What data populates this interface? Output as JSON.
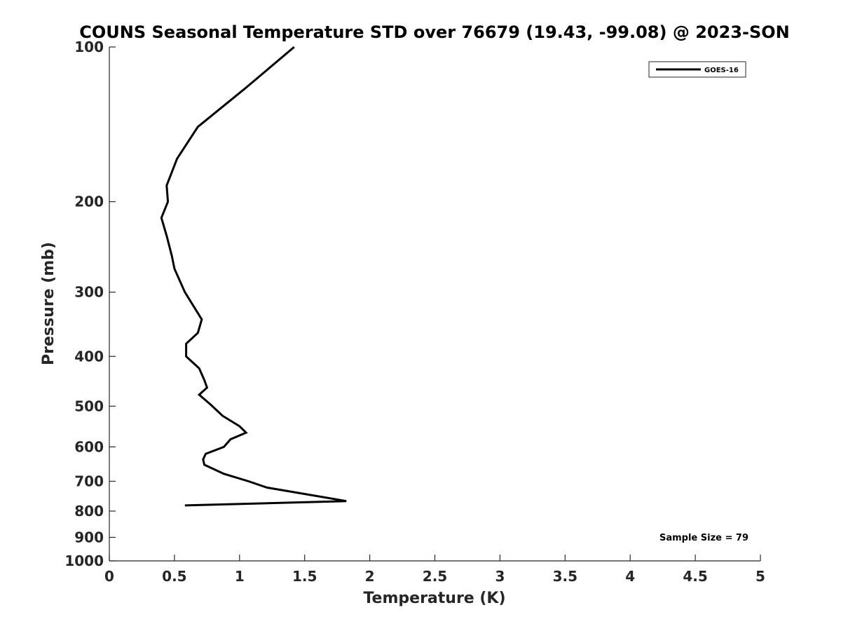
{
  "chart_data": {
    "type": "line",
    "title": "COUNS Seasonal Temperature STD over 76679 (19.43, -99.08) @ 2023-SON",
    "xlabel": "Temperature (K)",
    "ylabel": "Pressure (mb)",
    "xlim": [
      0,
      5
    ],
    "ylim": [
      100,
      1000
    ],
    "y_scale": "log",
    "y_reversed": true,
    "x_ticks": [
      0,
      0.5,
      1,
      1.5,
      2,
      2.5,
      3,
      3.5,
      4,
      4.5,
      5
    ],
    "x_tick_labels": [
      "0",
      "0.5",
      "1",
      "1.5",
      "2",
      "2.5",
      "3",
      "3.5",
      "4",
      "4.5",
      "5"
    ],
    "y_ticks": [
      100,
      200,
      300,
      400,
      500,
      600,
      700,
      800,
      900,
      1000
    ],
    "y_tick_labels": [
      "100",
      "200",
      "300",
      "400",
      "500",
      "600",
      "700",
      "800",
      "900",
      "1000"
    ],
    "grid": false,
    "legend_position": "top-right",
    "annotation": "Sample Size = 79",
    "series": [
      {
        "name": "GOES-16",
        "color": "#000000",
        "points": [
          [
            1.42,
            100
          ],
          [
            1.05,
            120
          ],
          [
            0.68,
            143
          ],
          [
            0.52,
            165
          ],
          [
            0.44,
            186
          ],
          [
            0.45,
            200
          ],
          [
            0.4,
            215
          ],
          [
            0.44,
            233
          ],
          [
            0.48,
            255
          ],
          [
            0.5,
            270
          ],
          [
            0.58,
            300
          ],
          [
            0.71,
            339
          ],
          [
            0.68,
            360
          ],
          [
            0.59,
            378
          ],
          [
            0.59,
            400
          ],
          [
            0.69,
            422
          ],
          [
            0.73,
            445
          ],
          [
            0.75,
            460
          ],
          [
            0.69,
            475
          ],
          [
            0.78,
            497
          ],
          [
            0.87,
            522
          ],
          [
            1.0,
            547
          ],
          [
            1.05,
            563
          ],
          [
            0.93,
            580
          ],
          [
            0.88,
            600
          ],
          [
            0.74,
            619
          ],
          [
            0.72,
            635
          ],
          [
            0.73,
            650
          ],
          [
            0.88,
            677
          ],
          [
            1.07,
            700
          ],
          [
            1.21,
            720
          ],
          [
            1.82,
            765
          ],
          [
            0.58,
            780
          ]
        ]
      }
    ]
  }
}
